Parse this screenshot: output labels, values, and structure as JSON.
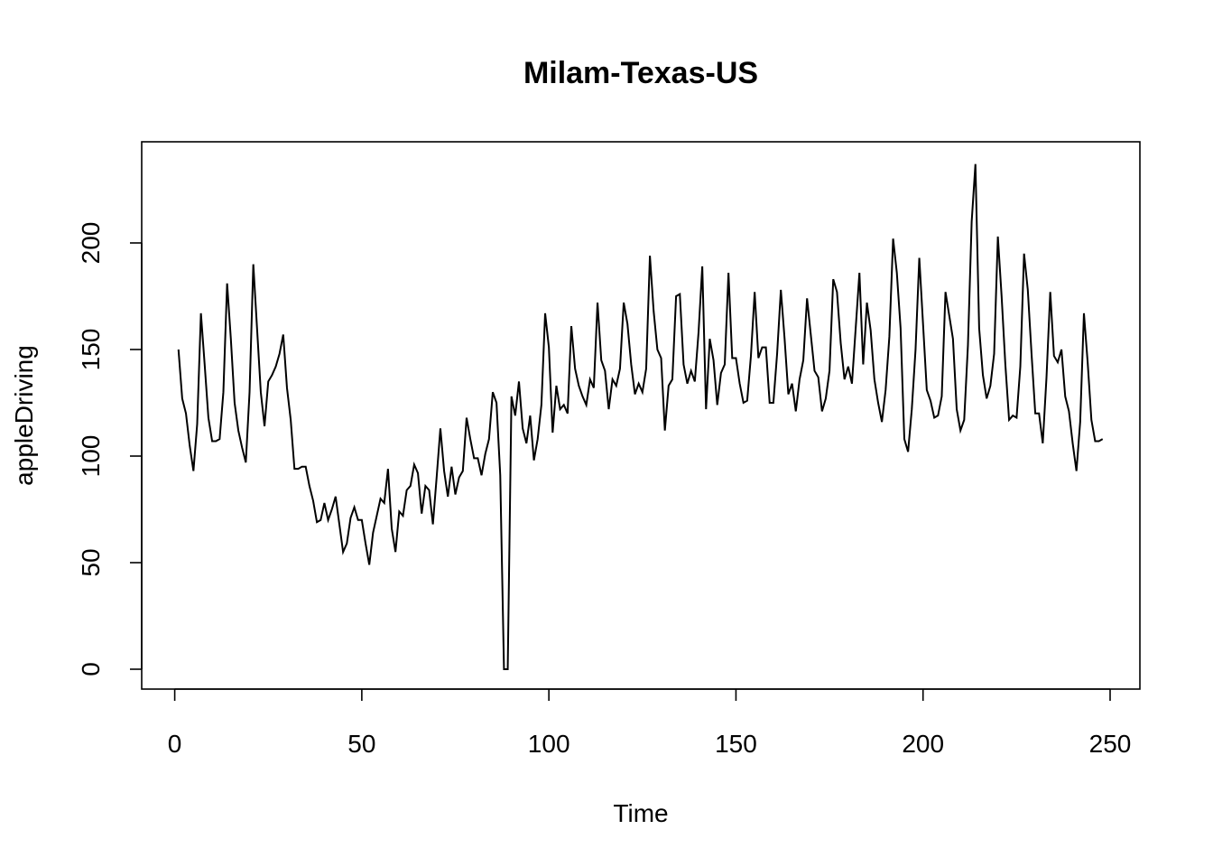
{
  "chart_data": {
    "type": "line",
    "title": "Milam-Texas-US",
    "xlabel": "Time",
    "ylabel": "appleDriving",
    "xlim": [
      0,
      250
    ],
    "ylim": [
      0,
      240
    ],
    "xticks": [
      0,
      50,
      100,
      150,
      200,
      250
    ],
    "yticks": [
      0,
      50,
      100,
      150,
      200
    ],
    "grid": false,
    "series": [
      {
        "color": "#000000",
        "x": [
          1,
          2,
          3,
          4,
          5,
          6,
          7,
          8,
          9,
          10,
          11,
          12,
          13,
          14,
          15,
          16,
          17,
          18,
          19,
          20,
          21,
          22,
          23,
          24,
          25,
          26,
          27,
          28,
          29,
          30,
          31,
          32,
          33,
          34,
          35,
          36,
          37,
          38,
          39,
          40,
          41,
          42,
          43,
          44,
          45,
          46,
          47,
          48,
          49,
          50,
          51,
          52,
          53,
          54,
          55,
          56,
          57,
          58,
          59,
          60,
          61,
          62,
          63,
          64,
          65,
          66,
          67,
          68,
          69,
          70,
          71,
          72,
          73,
          74,
          75,
          76,
          77,
          78,
          79,
          80,
          81,
          82,
          83,
          84,
          85,
          86,
          87,
          88,
          89,
          90,
          91,
          92,
          93,
          94,
          95,
          96,
          97,
          98,
          99,
          100,
          101,
          102,
          103,
          104,
          105,
          106,
          107,
          108,
          109,
          110,
          111,
          112,
          113,
          114,
          115,
          116,
          117,
          118,
          119,
          120,
          121,
          122,
          123,
          124,
          125,
          126,
          127,
          128,
          129,
          130,
          131,
          132,
          133,
          134,
          135,
          136,
          137,
          138,
          139,
          140,
          141,
          142,
          143,
          144,
          145,
          146,
          147,
          148,
          149,
          150,
          151,
          152,
          153,
          154,
          155,
          156,
          157,
          158,
          159,
          160,
          161,
          162,
          163,
          164,
          165,
          166,
          167,
          168,
          169,
          170,
          171,
          172,
          173,
          174,
          175,
          176,
          177,
          178,
          179,
          180,
          181,
          182,
          183,
          184,
          185,
          186,
          187,
          188,
          189,
          190,
          191,
          192,
          193,
          194,
          195,
          196,
          197,
          198,
          199,
          200,
          201,
          202,
          203,
          204,
          205,
          206,
          207,
          208,
          209,
          210,
          211,
          212,
          213,
          214,
          215,
          216,
          217,
          218,
          219,
          220,
          221,
          222,
          223,
          224,
          225,
          226,
          227,
          228,
          229,
          230,
          231,
          232,
          233,
          234,
          235,
          236,
          237,
          238,
          239,
          240,
          241,
          242,
          243,
          244,
          245,
          246,
          247,
          248
        ],
        "y": [
          150,
          127,
          120,
          105,
          93,
          115,
          167,
          143,
          118,
          107,
          107,
          108,
          130,
          181,
          155,
          125,
          112,
          104,
          97,
          130,
          190,
          160,
          130,
          114,
          135,
          138,
          142,
          148,
          157,
          132,
          117,
          94,
          94,
          95,
          95,
          86,
          79,
          69,
          70,
          78,
          70,
          75,
          81,
          68,
          55,
          59,
          71,
          76,
          70,
          70,
          59,
          49,
          64,
          72,
          80,
          78,
          94,
          66,
          55,
          74,
          72,
          84,
          86,
          96,
          92,
          73,
          86,
          84,
          68,
          90,
          113,
          93,
          81,
          95,
          82,
          90,
          93,
          118,
          108,
          99,
          99,
          91,
          101,
          108,
          130,
          125,
          91,
          0,
          0,
          128,
          119,
          135,
          113,
          106,
          119,
          98,
          108,
          124,
          167,
          151,
          111,
          133,
          122,
          124,
          120,
          161,
          141,
          133,
          128,
          124,
          136,
          132,
          172,
          145,
          140,
          122,
          136,
          133,
          141,
          172,
          162,
          143,
          129,
          134,
          130,
          141,
          194,
          168,
          150,
          146,
          112,
          133,
          136,
          175,
          176,
          143,
          134,
          140,
          135,
          158,
          189,
          122,
          155,
          145,
          124,
          139,
          143,
          186,
          146,
          146,
          134,
          125,
          126,
          147,
          177,
          146,
          151,
          151,
          125,
          125,
          148,
          178,
          155,
          129,
          134,
          121,
          136,
          145,
          174,
          157,
          140,
          137,
          121,
          127,
          140,
          183,
          177,
          153,
          136,
          142,
          134,
          160,
          186,
          143,
          172,
          159,
          136,
          125,
          116,
          131,
          156,
          202,
          186,
          160,
          108,
          102,
          122,
          150,
          193,
          162,
          131,
          126,
          118,
          119,
          128,
          177,
          166,
          155,
          122,
          112,
          117,
          152,
          210,
          237,
          160,
          138,
          127,
          133,
          148,
          203,
          175,
          143,
          117,
          119,
          118,
          142,
          195,
          178,
          148,
          120,
          120,
          106,
          137,
          177,
          147,
          144,
          150,
          128,
          121,
          106,
          93,
          116,
          167,
          144,
          117,
          107,
          107,
          108
        ]
      }
    ]
  }
}
